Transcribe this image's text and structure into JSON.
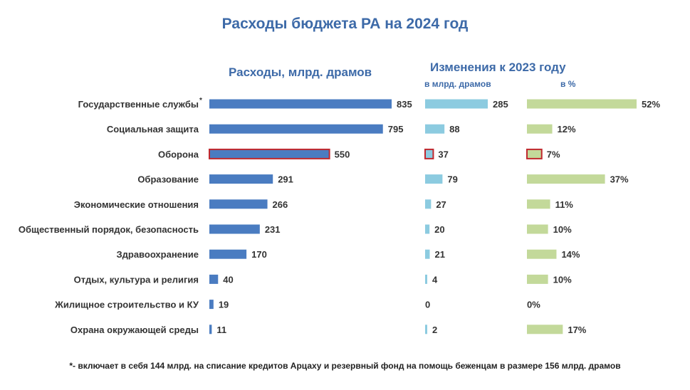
{
  "title": "Расходы бюджета РА на 2024 год",
  "footnote": "*- включает в себя 144 млрд. на списание кредитов Арцаху и резервный фонд на помощь беженцам в размере 156 млрд. драмов",
  "colors": {
    "expense_bar": "#4a7cc1",
    "change_abs_bar": "#8ccbe0",
    "change_pct_bar": "#c3d99a",
    "highlight_border": "#c0282e",
    "title": "#3d6aa8",
    "label": "#333333"
  },
  "chart_data": {
    "type": "bar",
    "orientation": "horizontal",
    "title": "Расходы бюджета РА на 2024 год",
    "categories": [
      "Государственные службы",
      "Социальная защита",
      "Оборона",
      "Образование",
      "Экономические отношения",
      "Общественный порядок, безопасность",
      "Здравоохранение",
      "Отдых, культура и религия",
      "Жилищное строительство и КУ",
      "Охрана окружающей среды"
    ],
    "category_footnote_marks": [
      "*",
      "",
      "",
      "",
      "",
      "",
      "",
      "",
      "",
      ""
    ],
    "highlighted_category": "Оборона",
    "panels": [
      {
        "id": "expenses",
        "title": "Расходы, млрд. драмов",
        "subtitle": "",
        "values": [
          835,
          795,
          550,
          291,
          266,
          231,
          170,
          40,
          19,
          11
        ],
        "labels": [
          "835",
          "795",
          "550",
          "291",
          "266",
          "231",
          "170",
          "40",
          "19",
          "11"
        ],
        "max": 835
      },
      {
        "id": "change_abs",
        "title": "Изменения к 2023 году",
        "subtitle": "в млрд. драмов",
        "values": [
          285,
          88,
          37,
          79,
          27,
          20,
          21,
          4,
          0,
          2
        ],
        "labels": [
          "285",
          "88",
          "37",
          "79",
          "27",
          "20",
          "21",
          "4",
          "0",
          "2"
        ],
        "max": 285
      },
      {
        "id": "change_pct",
        "title": "",
        "subtitle": "в %",
        "values": [
          52,
          12,
          7,
          37,
          11,
          10,
          14,
          10,
          0,
          17
        ],
        "labels": [
          "52%",
          "12%",
          "7%",
          "37%",
          "11%",
          "10%",
          "14%",
          "10%",
          "0%",
          "17%"
        ],
        "max": 52
      }
    ]
  }
}
